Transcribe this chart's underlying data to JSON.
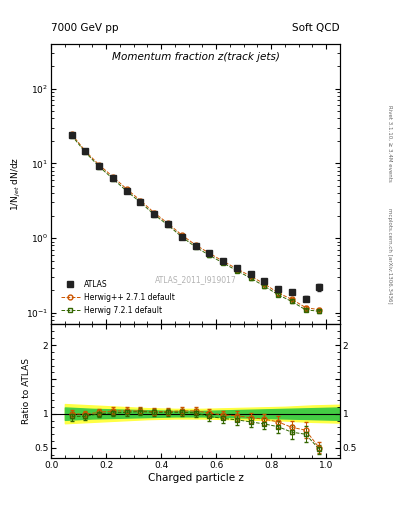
{
  "title_top_left": "7000 GeV pp",
  "title_top_right": "Soft QCD",
  "main_title": "Momentum fraction z(track jets)",
  "watermark": "ATLAS_2011_I919017",
  "ylabel_main": "1/N$_{jet}$ dN/dz",
  "ylabel_ratio": "Ratio to ATLAS",
  "xlabel": "Charged particle z",
  "right_label_top": "Rivet 3.1.10, ≥ 3.4M events",
  "right_label_bottom": "mcplots.cern.ch [arXiv:1306.3436]",
  "xlim": [
    0.0,
    1.05
  ],
  "ylim_main": [
    0.07,
    400
  ],
  "ylim_ratio": [
    0.35,
    2.3
  ],
  "atlas_x": [
    0.075,
    0.125,
    0.175,
    0.225,
    0.275,
    0.325,
    0.375,
    0.425,
    0.475,
    0.525,
    0.575,
    0.625,
    0.675,
    0.725,
    0.775,
    0.825,
    0.875,
    0.925,
    0.975
  ],
  "atlas_y": [
    24.0,
    14.5,
    9.2,
    6.3,
    4.3,
    3.05,
    2.1,
    1.52,
    1.05,
    0.78,
    0.63,
    0.5,
    0.4,
    0.33,
    0.265,
    0.21,
    0.19,
    0.155,
    0.22
  ],
  "atlas_yerr": [
    1.2,
    0.7,
    0.45,
    0.3,
    0.22,
    0.16,
    0.11,
    0.08,
    0.06,
    0.045,
    0.038,
    0.03,
    0.025,
    0.02,
    0.017,
    0.014,
    0.013,
    0.012,
    0.025
  ],
  "herwig271_x": [
    0.075,
    0.125,
    0.175,
    0.225,
    0.275,
    0.325,
    0.375,
    0.425,
    0.475,
    0.525,
    0.575,
    0.625,
    0.675,
    0.725,
    0.775,
    0.825,
    0.875,
    0.925,
    0.975
  ],
  "herwig271_y": [
    24.5,
    14.5,
    9.5,
    6.6,
    4.52,
    3.18,
    2.18,
    1.57,
    1.1,
    0.81,
    0.63,
    0.49,
    0.39,
    0.31,
    0.245,
    0.185,
    0.152,
    0.118,
    0.11
  ],
  "herwig271_yerr": [
    0.8,
    0.5,
    0.35,
    0.25,
    0.18,
    0.13,
    0.09,
    0.065,
    0.048,
    0.036,
    0.028,
    0.022,
    0.017,
    0.014,
    0.011,
    0.009,
    0.007,
    0.006,
    0.005
  ],
  "herwig271_ratio": [
    1.0,
    0.99,
    1.02,
    1.04,
    1.04,
    1.04,
    1.03,
    1.03,
    1.04,
    1.04,
    1.01,
    0.98,
    0.97,
    0.94,
    0.92,
    0.88,
    0.8,
    0.76,
    0.5
  ],
  "herwig271_ratio_err": [
    0.06,
    0.05,
    0.05,
    0.05,
    0.05,
    0.05,
    0.05,
    0.05,
    0.055,
    0.06,
    0.06,
    0.065,
    0.07,
    0.075,
    0.08,
    0.09,
    0.1,
    0.12,
    0.08
  ],
  "herwig721_x": [
    0.075,
    0.125,
    0.175,
    0.225,
    0.275,
    0.325,
    0.375,
    0.425,
    0.475,
    0.525,
    0.575,
    0.625,
    0.675,
    0.725,
    0.775,
    0.825,
    0.875,
    0.925,
    0.975
  ],
  "herwig721_y": [
    23.5,
    14.0,
    9.0,
    6.2,
    4.25,
    3.0,
    2.06,
    1.49,
    1.04,
    0.76,
    0.59,
    0.465,
    0.368,
    0.292,
    0.228,
    0.175,
    0.142,
    0.11,
    0.105
  ],
  "herwig721_yerr": [
    0.7,
    0.45,
    0.32,
    0.22,
    0.16,
    0.12,
    0.08,
    0.06,
    0.044,
    0.033,
    0.026,
    0.02,
    0.016,
    0.013,
    0.01,
    0.008,
    0.006,
    0.005,
    0.004
  ],
  "herwig721_ratio": [
    0.96,
    0.96,
    1.0,
    1.01,
    1.02,
    1.03,
    1.02,
    1.02,
    1.02,
    1.01,
    0.96,
    0.93,
    0.91,
    0.88,
    0.85,
    0.81,
    0.73,
    0.7,
    0.48
  ],
  "herwig721_ratio_err": [
    0.06,
    0.05,
    0.05,
    0.05,
    0.05,
    0.05,
    0.05,
    0.05,
    0.055,
    0.06,
    0.06,
    0.065,
    0.07,
    0.075,
    0.08,
    0.09,
    0.1,
    0.12,
    0.07
  ],
  "atlas_color": "#222222",
  "herwig271_color": "#cc5500",
  "herwig721_color": "#336600",
  "band_yellow": "#ffff44",
  "band_green": "#44cc44",
  "band_x": [
    0.05,
    0.15,
    0.25,
    0.35,
    0.45,
    0.55,
    0.65,
    0.75,
    0.85,
    0.95,
    1.05
  ],
  "band_yellow_lo": [
    0.86,
    0.88,
    0.9,
    0.92,
    0.93,
    0.93,
    0.92,
    0.91,
    0.9,
    0.88,
    0.87
  ],
  "band_yellow_hi": [
    1.14,
    1.12,
    1.1,
    1.08,
    1.07,
    1.07,
    1.08,
    1.09,
    1.1,
    1.12,
    1.13
  ],
  "band_green_lo": [
    0.91,
    0.93,
    0.94,
    0.95,
    0.96,
    0.96,
    0.95,
    0.94,
    0.93,
    0.92,
    0.91
  ],
  "band_green_hi": [
    1.09,
    1.07,
    1.06,
    1.05,
    1.04,
    1.04,
    1.05,
    1.06,
    1.07,
    1.08,
    1.09
  ]
}
